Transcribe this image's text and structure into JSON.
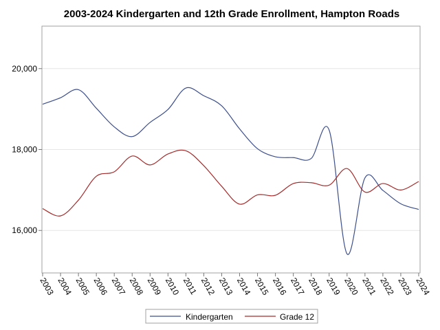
{
  "chart_data": {
    "type": "line",
    "title": "2003-2024 Kindergarten and 12th Grade Enrollment, Hampton Roads",
    "xlabel": "",
    "ylabel": "",
    "x": [
      "2003",
      "2004",
      "2005",
      "2006",
      "2007",
      "2008",
      "2009",
      "2010",
      "2011",
      "2012",
      "2013",
      "2014",
      "2015",
      "2016",
      "2017",
      "2018",
      "2019",
      "2020",
      "2021",
      "2022",
      "2023",
      "2024"
    ],
    "y_ticks": [
      "16,000",
      "18,000",
      "20,000"
    ],
    "y_tick_values": [
      16000,
      18000,
      20000
    ],
    "ylim": [
      14950,
      21050
    ],
    "grid": "horizontal",
    "legend_position": "bottom",
    "series": [
      {
        "name": "Kindergarten",
        "color": "#3c4e8a",
        "values": [
          19120,
          19280,
          19480,
          19020,
          18560,
          18320,
          18670,
          18990,
          19520,
          19330,
          19080,
          18510,
          18020,
          17820,
          17800,
          17780,
          18480,
          15420,
          17300,
          16990,
          16660,
          16520
        ]
      },
      {
        "name": "Grade 12",
        "color": "#a52a2a",
        "values": [
          16540,
          16360,
          16750,
          17340,
          17450,
          17840,
          17620,
          17890,
          17970,
          17600,
          17090,
          16650,
          16880,
          16870,
          17160,
          17180,
          17120,
          17530,
          16950,
          17160,
          17000,
          17210
        ]
      }
    ]
  }
}
